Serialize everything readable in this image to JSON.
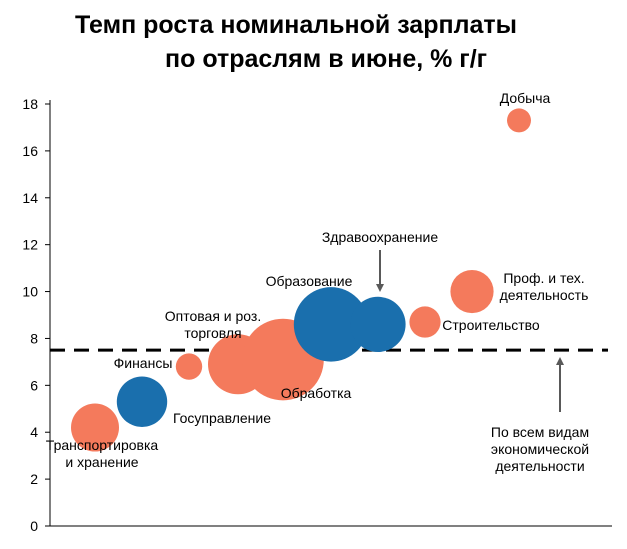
{
  "chart_data": {
    "type": "scatter",
    "title_lines": [
      "Темп роста номинальной зарплаты",
      "по отраслям в июне, % г/г"
    ],
    "xlabel": "",
    "ylabel": "",
    "ylim": [
      0,
      18
    ],
    "yticks": [
      0,
      2,
      4,
      6,
      8,
      10,
      12,
      14,
      16,
      18
    ],
    "grid": false,
    "colors": {
      "private": "#f47a5c",
      "public": "#1a6fad",
      "reference": "#000000",
      "arrow": "#595959"
    },
    "reference_line": {
      "value": 7.5,
      "label_lines": [
        "По всем видам",
        "экономической",
        "деятельности"
      ]
    },
    "points": [
      {
        "label_lines": [
          "Транспортировка",
          "и хранение"
        ],
        "x": 1,
        "y": 4.2,
        "size": 1.0,
        "group": "private"
      },
      {
        "label_lines": [
          "Госуправление"
        ],
        "x": 2,
        "y": 5.3,
        "size": 1.05,
        "group": "public"
      },
      {
        "label_lines": [
          "Финансы"
        ],
        "x": 3,
        "y": 6.8,
        "size": 0.55,
        "group": "private"
      },
      {
        "label_lines": [
          "Оптовая и роз.",
          "торговля"
        ],
        "x": 4,
        "y": 6.9,
        "size": 1.25,
        "group": "private"
      },
      {
        "label_lines": [
          "Обработка"
        ],
        "x": 5,
        "y": 7.1,
        "size": 1.7,
        "group": "private"
      },
      {
        "label_lines": [
          "Образование"
        ],
        "x": 6,
        "y": 8.6,
        "size": 1.55,
        "group": "public"
      },
      {
        "label_lines": [
          "Здравоохранение"
        ],
        "x": 7,
        "y": 8.6,
        "size": 1.15,
        "group": "public"
      },
      {
        "label_lines": [
          "Строительство"
        ],
        "x": 8,
        "y": 8.7,
        "size": 0.65,
        "group": "private"
      },
      {
        "label_lines": [
          "Проф. и тех.",
          "деятельность"
        ],
        "x": 9,
        "y": 10.0,
        "size": 0.9,
        "group": "private"
      },
      {
        "label_lines": [
          "Добыча"
        ],
        "x": 10,
        "y": 17.3,
        "size": 0.5,
        "group": "private"
      }
    ]
  }
}
